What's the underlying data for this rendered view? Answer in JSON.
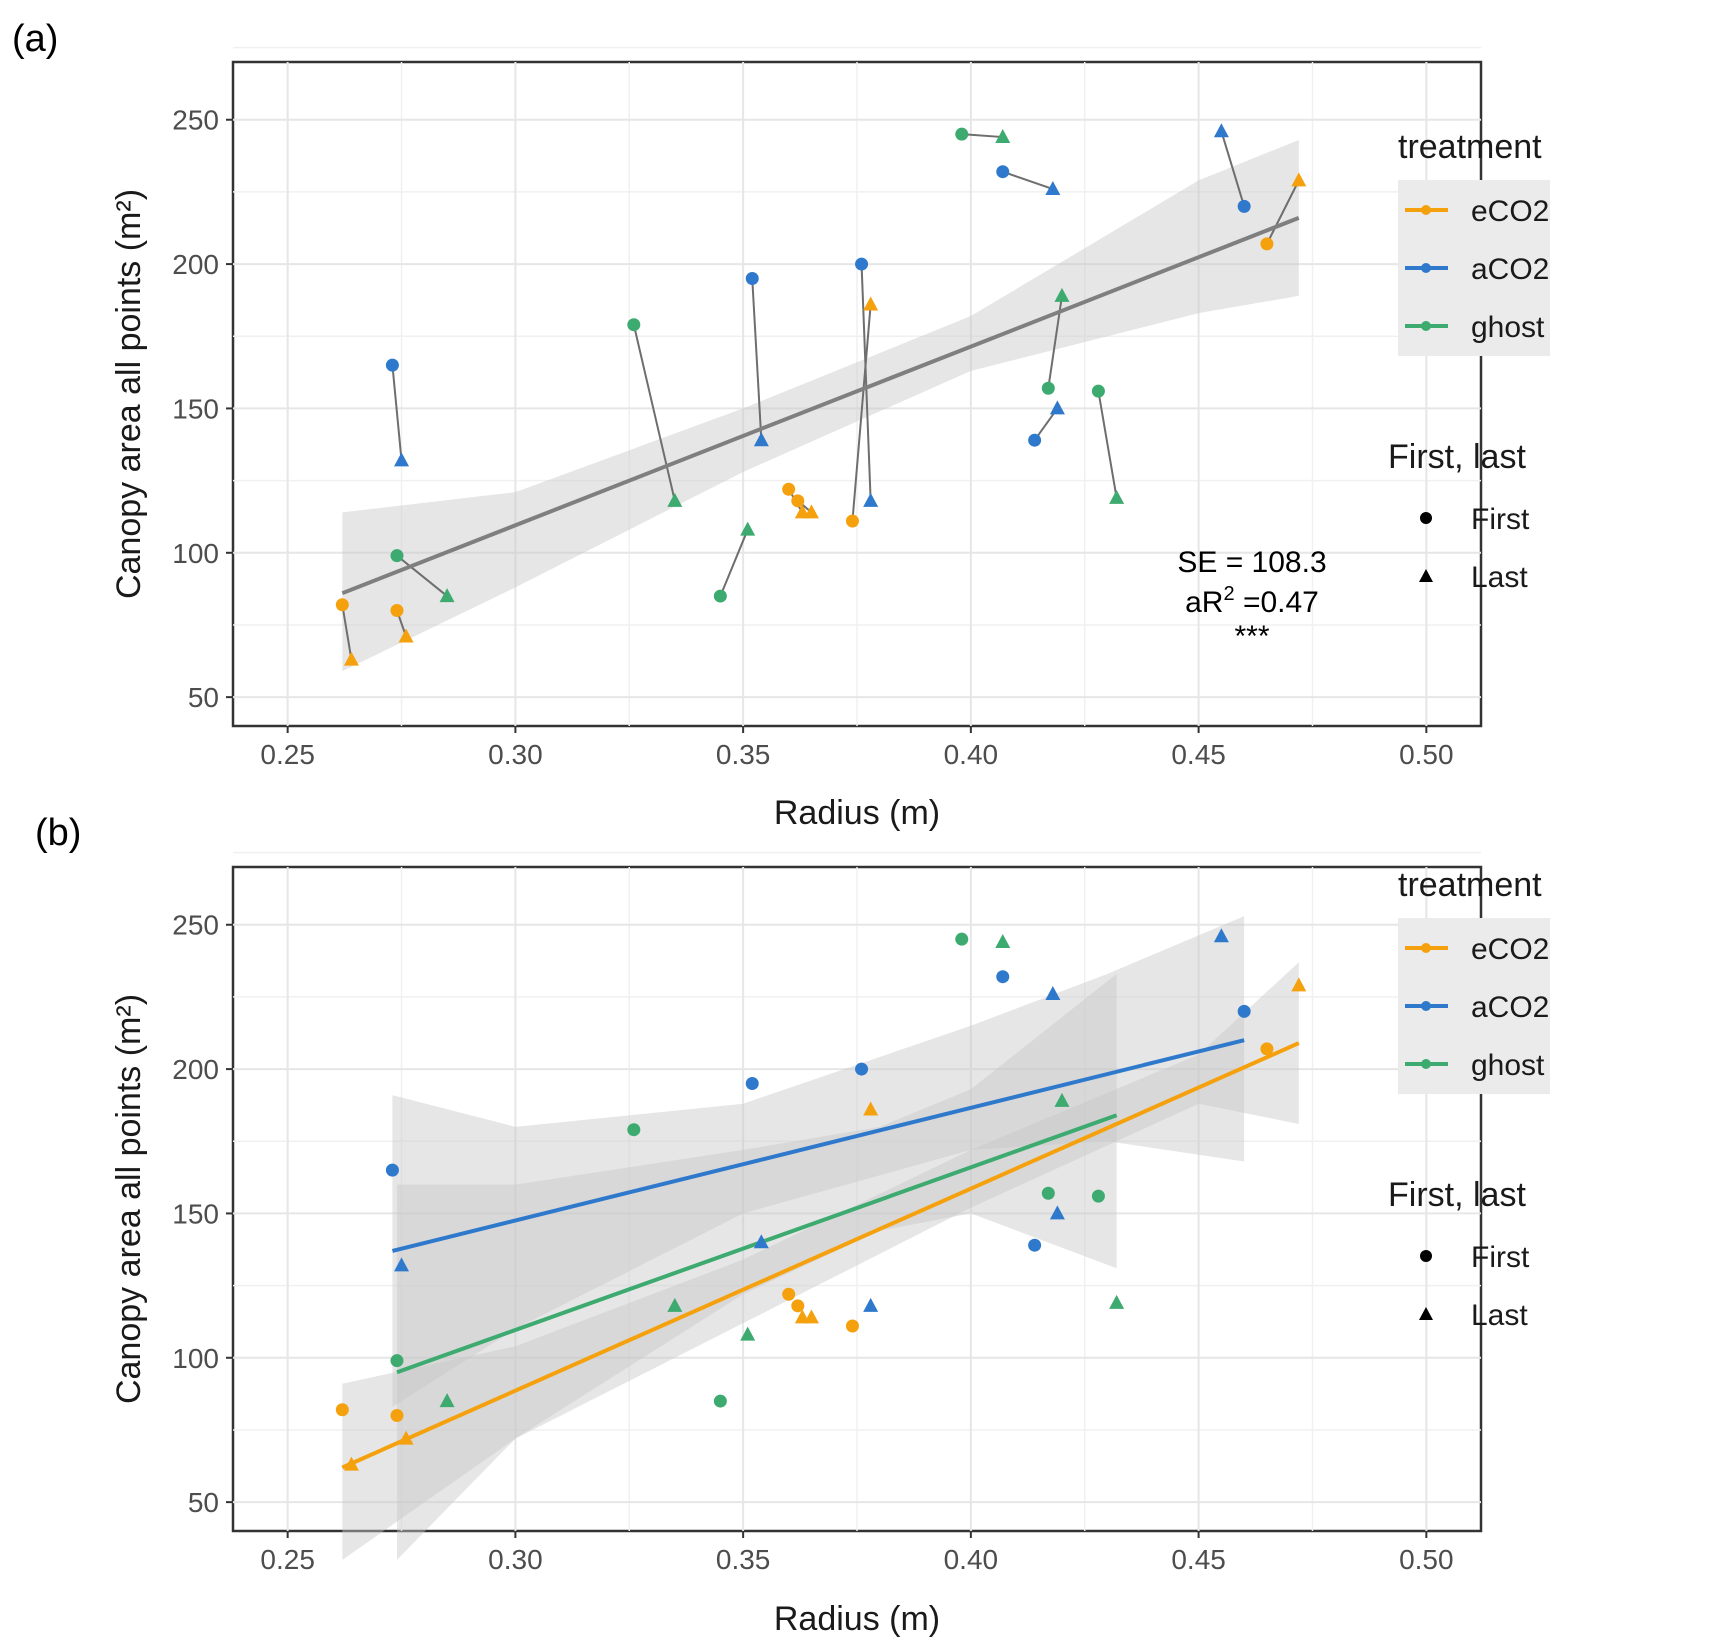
{
  "panel_labels": [
    "(a)",
    "(b)"
  ],
  "legend": {
    "color_title": "treatment",
    "shape_title": "First, last",
    "color_items": [
      {
        "name": "eCO2",
        "color": "#f5a10e"
      },
      {
        "name": "aCO2",
        "color": "#2f79cc"
      },
      {
        "name": "ghost",
        "color": "#3daa6f"
      }
    ],
    "shape_items": [
      {
        "name": "First",
        "shape": "circle"
      },
      {
        "name": "Last",
        "shape": "triangle"
      }
    ]
  },
  "colors": {
    "eCO2": "#f5a10e",
    "aCO2": "#2f79cc",
    "ghost": "#3daa6f",
    "fit": "#7f7f7f",
    "band": "#d9d9d9",
    "panel_bg": "#ffffff",
    "grid": "#e6e6e6"
  },
  "chart_data": [
    {
      "id": "a",
      "type": "scatter",
      "title": "",
      "xlabel": "Radius (m)",
      "ylabel": "Canopy area all points (m²)",
      "xlim": [
        0.238,
        0.512
      ],
      "ylim": [
        40,
        270
      ],
      "xticks": [
        "0.25",
        "0.30",
        "0.35",
        "0.40",
        "0.45",
        "0.50"
      ],
      "yticks": [
        "50",
        "100",
        "150",
        "200",
        "250"
      ],
      "annotation": {
        "se": "SE = 108.3",
        "ar2_prefix": "aR",
        "ar2_sup": "2",
        "ar2_suffix": " =0.47",
        "stars": "***"
      },
      "pairs": [
        {
          "treatment": "eCO2",
          "first": [
            0.262,
            82
          ],
          "last": [
            0.264,
            63
          ]
        },
        {
          "treatment": "eCO2",
          "first": [
            0.274,
            80
          ],
          "last": [
            0.276,
            71
          ]
        },
        {
          "treatment": "eCO2",
          "first": [
            0.36,
            122
          ],
          "last": [
            0.363,
            114
          ]
        },
        {
          "treatment": "eCO2",
          "first": [
            0.362,
            118
          ],
          "last": [
            0.365,
            114
          ]
        },
        {
          "treatment": "eCO2",
          "first": [
            0.374,
            111
          ],
          "last": [
            0.378,
            186
          ]
        },
        {
          "treatment": "eCO2",
          "first": [
            0.465,
            207
          ],
          "last": [
            0.472,
            229
          ]
        },
        {
          "treatment": "aCO2",
          "first": [
            0.273,
            165
          ],
          "last": [
            0.275,
            132
          ]
        },
        {
          "treatment": "aCO2",
          "first": [
            0.352,
            195
          ],
          "last": [
            0.354,
            139
          ]
        },
        {
          "treatment": "aCO2",
          "first": [
            0.376,
            200
          ],
          "last": [
            0.378,
            118
          ]
        },
        {
          "treatment": "aCO2",
          "first": [
            0.407,
            232
          ],
          "last": [
            0.418,
            226
          ]
        },
        {
          "treatment": "aCO2",
          "first": [
            0.414,
            139
          ],
          "last": [
            0.419,
            150
          ]
        },
        {
          "treatment": "aCO2",
          "first": [
            0.46,
            220
          ],
          "last": [
            0.455,
            246
          ]
        },
        {
          "treatment": "ghost",
          "first": [
            0.274,
            99
          ],
          "last": [
            0.285,
            85
          ]
        },
        {
          "treatment": "ghost",
          "first": [
            0.326,
            179
          ],
          "last": [
            0.335,
            118
          ]
        },
        {
          "treatment": "ghost",
          "first": [
            0.345,
            85
          ],
          "last": [
            0.351,
            108
          ]
        },
        {
          "treatment": "ghost",
          "first": [
            0.398,
            245
          ],
          "last": [
            0.407,
            244
          ]
        },
        {
          "treatment": "ghost",
          "first": [
            0.417,
            157
          ],
          "last": [
            0.42,
            189
          ]
        },
        {
          "treatment": "ghost",
          "first": [
            0.428,
            156
          ],
          "last": [
            0.432,
            119
          ]
        }
      ],
      "fits": [
        {
          "name": "all",
          "color": "#7f7f7f",
          "x": [
            0.262,
            0.472
          ],
          "y": [
            86,
            216
          ],
          "band_x": [
            0.262,
            0.3,
            0.35,
            0.4,
            0.45,
            0.472
          ],
          "band_lo": [
            59,
            88,
            128,
            163,
            183,
            189
          ],
          "band_hi": [
            114,
            121,
            150,
            182,
            229,
            243
          ]
        }
      ]
    },
    {
      "id": "b",
      "type": "scatter",
      "title": "",
      "xlabel": "Radius (m)",
      "ylabel": "Canopy area all points (m²)",
      "xlim": [
        0.238,
        0.512
      ],
      "ylim": [
        40,
        270
      ],
      "xticks": [
        "0.25",
        "0.30",
        "0.35",
        "0.40",
        "0.45",
        "0.50"
      ],
      "yticks": [
        "50",
        "100",
        "150",
        "200",
        "250"
      ],
      "pairs": [
        {
          "treatment": "eCO2",
          "first": [
            0.262,
            82
          ],
          "last": [
            0.264,
            63
          ]
        },
        {
          "treatment": "eCO2",
          "first": [
            0.274,
            80
          ],
          "last": [
            0.276,
            72
          ]
        },
        {
          "treatment": "eCO2",
          "first": [
            0.36,
            122
          ],
          "last": [
            0.363,
            114
          ]
        },
        {
          "treatment": "eCO2",
          "first": [
            0.362,
            118
          ],
          "last": [
            0.365,
            114
          ]
        },
        {
          "treatment": "eCO2",
          "first": [
            0.374,
            111
          ],
          "last": [
            0.378,
            186
          ]
        },
        {
          "treatment": "eCO2",
          "first": [
            0.465,
            207
          ],
          "last": [
            0.472,
            229
          ]
        },
        {
          "treatment": "aCO2",
          "first": [
            0.273,
            165
          ],
          "last": [
            0.275,
            132
          ]
        },
        {
          "treatment": "aCO2",
          "first": [
            0.352,
            195
          ],
          "last": [
            0.354,
            140
          ]
        },
        {
          "treatment": "aCO2",
          "first": [
            0.376,
            200
          ],
          "last": [
            0.378,
            118
          ]
        },
        {
          "treatment": "aCO2",
          "first": [
            0.407,
            232
          ],
          "last": [
            0.418,
            226
          ]
        },
        {
          "treatment": "aCO2",
          "first": [
            0.414,
            139
          ],
          "last": [
            0.419,
            150
          ]
        },
        {
          "treatment": "aCO2",
          "first": [
            0.46,
            220
          ],
          "last": [
            0.455,
            246
          ]
        },
        {
          "treatment": "ghost",
          "first": [
            0.274,
            99
          ],
          "last": [
            0.285,
            85
          ]
        },
        {
          "treatment": "ghost",
          "first": [
            0.326,
            179
          ],
          "last": [
            0.335,
            118
          ]
        },
        {
          "treatment": "ghost",
          "first": [
            0.345,
            85
          ],
          "last": [
            0.351,
            108
          ]
        },
        {
          "treatment": "ghost",
          "first": [
            0.398,
            245
          ],
          "last": [
            0.407,
            244
          ]
        },
        {
          "treatment": "ghost",
          "first": [
            0.417,
            157
          ],
          "last": [
            0.42,
            189
          ]
        },
        {
          "treatment": "ghost",
          "first": [
            0.428,
            156
          ],
          "last": [
            0.432,
            119
          ]
        }
      ],
      "fits": [
        {
          "name": "aCO2",
          "color": "#2f79cc",
          "x": [
            0.273,
            0.46
          ],
          "y": [
            137,
            210
          ],
          "band_x": [
            0.273,
            0.3,
            0.35,
            0.4,
            0.43,
            0.46
          ],
          "band_lo": [
            83,
            110,
            150,
            172,
            175,
            168
          ],
          "band_hi": [
            191,
            180,
            188,
            215,
            233,
            253
          ]
        },
        {
          "name": "ghost",
          "color": "#3daa6f",
          "x": [
            0.274,
            0.432
          ],
          "y": [
            95,
            184
          ],
          "band_x": [
            0.274,
            0.3,
            0.35,
            0.38,
            0.4,
            0.432
          ],
          "band_lo": [
            30,
            72,
            122,
            144,
            150,
            131
          ],
          "band_hi": [
            160,
            160,
            172,
            180,
            193,
            233
          ]
        },
        {
          "name": "eCO2",
          "color": "#f5a10e",
          "x": [
            0.262,
            0.472
          ],
          "y": [
            62,
            209
          ],
          "band_x": [
            0.262,
            0.3,
            0.35,
            0.4,
            0.45,
            0.472
          ],
          "band_lo": [
            30,
            72,
            112,
            152,
            188,
            181
          ],
          "band_hi": [
            91,
            104,
            134,
            172,
            205,
            237
          ]
        }
      ]
    }
  ]
}
